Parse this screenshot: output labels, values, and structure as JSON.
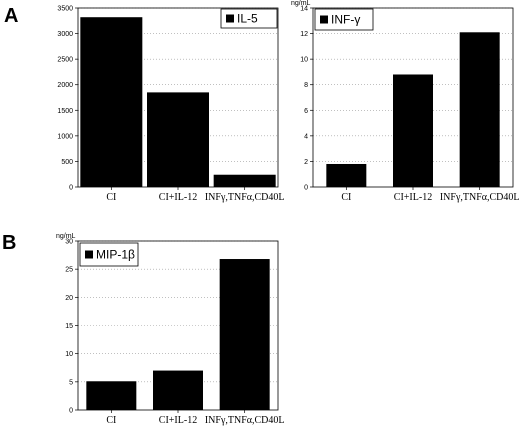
{
  "panels": {
    "a": "A",
    "b": "B"
  },
  "chart_data": [
    {
      "type": "bar",
      "categories": [
        "CI",
        "CI+IL-12",
        "INFγ,TNFα,CD40L"
      ],
      "values": [
        3320,
        1850,
        240
      ],
      "legend": "IL-5",
      "ylabel": "",
      "ylim": [
        0,
        3500
      ],
      "yticks": [
        0,
        500,
        1000,
        1500,
        2000,
        2500,
        3000,
        3500
      ],
      "grid": true,
      "legend_position": "top-right"
    },
    {
      "type": "bar",
      "categories": [
        "CI",
        "CI+IL-12",
        "INFγ,TNFα,CD40L"
      ],
      "values": [
        1.8,
        8.8,
        12.1
      ],
      "legend": "INF-γ",
      "ylabel": "ng/mL",
      "ylim": [
        0,
        14
      ],
      "yticks": [
        0,
        2,
        4,
        6,
        8,
        10,
        12,
        14
      ],
      "grid": true,
      "legend_position": "top-left"
    },
    {
      "type": "bar",
      "categories": [
        "CI",
        "CI+IL-12",
        "INFγ,TNFα,CD40L"
      ],
      "values": [
        5.1,
        7.0,
        26.8
      ],
      "legend": "MIP-1β",
      "ylabel": "ng/mL",
      "ylim": [
        0,
        30
      ],
      "yticks": [
        0,
        5,
        10,
        15,
        20,
        25,
        30
      ],
      "grid": true,
      "legend_position": "top-left"
    }
  ]
}
